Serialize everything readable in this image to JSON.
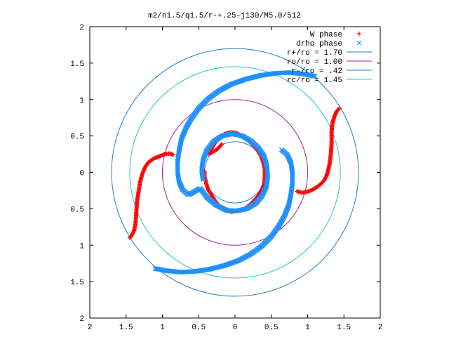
{
  "chart_data": {
    "type": "scatter",
    "title": "m2/n1.5/q1.5/r-+.25-j130/M5.0/512",
    "xlabel": "",
    "ylabel": "",
    "xlim": [
      -2,
      2
    ],
    "ylim": [
      -2,
      2
    ],
    "x_tick_labels": [
      "2",
      "1.5",
      "1",
      "0.5",
      "0",
      "0.5",
      "1",
      "1.5",
      "2"
    ],
    "x_tick_values": [
      -2,
      -1.5,
      -1,
      -0.5,
      0,
      0.5,
      1,
      1.5,
      2
    ],
    "y_tick_labels": [
      "2",
      "1.5",
      "1",
      "0.5",
      "0",
      "0.5",
      "1",
      "1.5",
      "2"
    ],
    "y_tick_values": [
      2,
      1.5,
      1,
      0.5,
      0,
      -0.5,
      -1,
      -1.5,
      -2
    ],
    "grid": false,
    "legend_position": "top-right",
    "series": [
      {
        "name": "W phase",
        "marker": "plus",
        "color": "#ff0000",
        "points": [
          [
            -1.45,
            -0.9
          ],
          [
            -1.42,
            -0.86
          ],
          [
            -1.39,
            -0.8
          ],
          [
            -1.37,
            -0.7
          ],
          [
            -1.36,
            -0.55
          ],
          [
            -1.35,
            -0.4
          ],
          [
            -1.33,
            -0.28
          ],
          [
            -1.31,
            -0.15
          ],
          [
            -1.28,
            -0.03
          ],
          [
            -1.24,
            0.07
          ],
          [
            -1.19,
            0.14
          ],
          [
            -1.12,
            0.19
          ],
          [
            -1.04,
            0.22
          ],
          [
            -0.97,
            0.25
          ],
          [
            -0.9,
            0.26
          ],
          [
            -0.85,
            0.24
          ],
          [
            -0.42,
            0.02
          ],
          [
            -0.42,
            -0.05
          ],
          [
            -0.4,
            -0.14
          ],
          [
            -0.37,
            -0.24
          ],
          [
            -0.33,
            -0.3
          ],
          [
            -0.28,
            -0.38
          ],
          [
            -0.22,
            -0.46
          ],
          [
            -0.14,
            -0.52
          ],
          [
            -0.05,
            -0.54
          ],
          [
            0.04,
            -0.53
          ],
          [
            0.13,
            -0.5
          ],
          [
            0.2,
            -0.45
          ],
          [
            0.26,
            -0.39
          ],
          [
            0.32,
            -0.32
          ],
          [
            0.37,
            -0.24
          ],
          [
            0.4,
            -0.16
          ],
          [
            0.41,
            -0.06
          ],
          [
            0.41,
            0.04
          ],
          [
            0.39,
            0.13
          ],
          [
            0.36,
            0.22
          ],
          [
            0.31,
            0.3
          ],
          [
            0.25,
            0.37
          ],
          [
            0.18,
            0.44
          ],
          [
            0.1,
            0.5
          ],
          [
            0.02,
            0.54
          ],
          [
            -0.06,
            0.55
          ],
          [
            -0.14,
            0.53
          ],
          [
            -0.21,
            0.48
          ],
          [
            -0.27,
            0.41
          ],
          [
            -0.32,
            0.33
          ],
          [
            -0.36,
            0.25
          ],
          [
            -0.24,
            0.32
          ],
          [
            -0.18,
            0.39
          ],
          [
            0.85,
            -0.26
          ],
          [
            0.93,
            -0.28
          ],
          [
            1.02,
            -0.26
          ],
          [
            1.1,
            -0.22
          ],
          [
            1.17,
            -0.17
          ],
          [
            1.23,
            -0.11
          ],
          [
            1.27,
            -0.02
          ],
          [
            1.3,
            0.1
          ],
          [
            1.32,
            0.25
          ],
          [
            1.33,
            0.4
          ],
          [
            1.33,
            0.55
          ],
          [
            1.34,
            0.67
          ],
          [
            1.37,
            0.77
          ],
          [
            1.4,
            0.84
          ],
          [
            1.44,
            0.88
          ]
        ]
      },
      {
        "name": "drho phase",
        "marker": "cross",
        "color": "#1e90ff",
        "points": [
          [
            -1.1,
            -1.32
          ],
          [
            -0.95,
            -1.35
          ],
          [
            -0.75,
            -1.37
          ],
          [
            -0.55,
            -1.36
          ],
          [
            -0.35,
            -1.33
          ],
          [
            -0.15,
            -1.28
          ],
          [
            0.05,
            -1.21
          ],
          [
            0.22,
            -1.12
          ],
          [
            0.37,
            -1.01
          ],
          [
            0.5,
            -0.88
          ],
          [
            0.6,
            -0.74
          ],
          [
            0.68,
            -0.6
          ],
          [
            0.74,
            -0.45
          ],
          [
            0.77,
            -0.3
          ],
          [
            0.79,
            -0.15
          ],
          [
            0.79,
            0.0
          ],
          [
            0.77,
            0.13
          ],
          [
            0.72,
            0.24
          ],
          [
            0.64,
            0.31
          ],
          [
            1.1,
            1.32
          ],
          [
            0.95,
            1.35
          ],
          [
            0.75,
            1.37
          ],
          [
            0.55,
            1.36
          ],
          [
            0.35,
            1.33
          ],
          [
            0.15,
            1.28
          ],
          [
            -0.05,
            1.21
          ],
          [
            -0.22,
            1.12
          ],
          [
            -0.37,
            1.01
          ],
          [
            -0.5,
            0.88
          ],
          [
            -0.6,
            0.74
          ],
          [
            -0.68,
            0.6
          ],
          [
            -0.74,
            0.45
          ],
          [
            -0.77,
            0.3
          ],
          [
            -0.79,
            0.15
          ],
          [
            -0.79,
            0.0
          ],
          [
            -0.77,
            -0.13
          ],
          [
            -0.72,
            -0.24
          ],
          [
            -0.64,
            -0.31
          ],
          [
            -0.48,
            -0.22
          ],
          [
            -0.38,
            -0.35
          ],
          [
            -0.26,
            -0.45
          ],
          [
            -0.12,
            -0.52
          ],
          [
            0.02,
            -0.53
          ],
          [
            0.16,
            -0.5
          ],
          [
            0.28,
            -0.43
          ],
          [
            0.37,
            -0.33
          ],
          [
            0.43,
            -0.2
          ],
          [
            0.45,
            -0.06
          ],
          [
            0.44,
            0.08
          ],
          [
            0.4,
            0.22
          ],
          [
            0.32,
            0.34
          ],
          [
            0.22,
            0.43
          ],
          [
            0.1,
            0.5
          ],
          [
            -0.04,
            0.53
          ],
          [
            -0.18,
            0.5
          ],
          [
            -0.3,
            0.42
          ],
          [
            -0.39,
            0.3
          ],
          [
            -0.44,
            0.17
          ],
          [
            -0.46,
            0.03
          ],
          [
            -0.44,
            -0.1
          ]
        ]
      }
    ],
    "circles": [
      {
        "name": "r+/ro = 1.70",
        "radius": 1.7,
        "color": "#1f7fcf"
      },
      {
        "name": "ro/ro = 1.00",
        "radius": 1.0,
        "color": "#a020a0"
      },
      {
        "name": "r-/ro = .42",
        "radius": 0.42,
        "color": "#1f7fcf"
      },
      {
        "name": "rc/ro = 1.45",
        "radius": 1.45,
        "color": "#20c8c8"
      }
    ]
  }
}
